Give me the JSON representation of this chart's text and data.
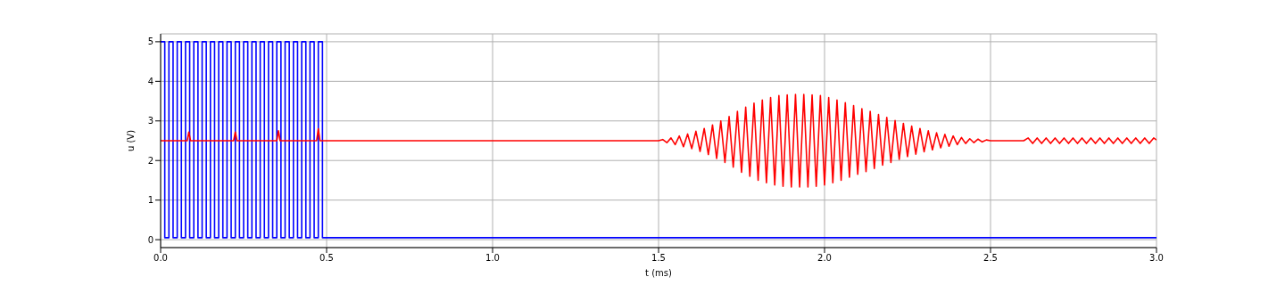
{
  "chart_data": {
    "type": "line",
    "xlabel": "t (ms)",
    "ylabel": "u (V)",
    "xlim": [
      0,
      3
    ],
    "ylim": [
      -0.2,
      5.2
    ],
    "xticks": [
      {
        "value": 0,
        "label": "0.0"
      },
      {
        "value": 0.5,
        "label": "0.5"
      },
      {
        "value": 1,
        "label": "1.0"
      },
      {
        "value": 1.5,
        "label": "1.5"
      },
      {
        "value": 2,
        "label": "2.0"
      },
      {
        "value": 2.5,
        "label": "2.5"
      },
      {
        "value": 3,
        "label": "3.0"
      }
    ],
    "yticks": [
      0,
      1,
      2,
      3,
      4,
      5
    ],
    "grid": true,
    "legend": false,
    "marker": "none",
    "line_style": "solid",
    "series": [
      {
        "color": "#0000ff",
        "x": [
          0,
          0.0125,
          0.0125,
          0.025,
          0.025,
          0.0375,
          0.0375,
          0.05,
          0.05,
          0.0625,
          0.0625,
          0.075,
          0.075,
          0.0875,
          0.0875,
          0.1,
          0.1,
          0.1125,
          0.1125,
          0.125,
          0.125,
          0.1375,
          0.1375,
          0.15,
          0.15,
          0.1625,
          0.1625,
          0.175,
          0.175,
          0.1875,
          0.1875,
          0.2,
          0.2,
          0.2125,
          0.2125,
          0.225,
          0.225,
          0.2375,
          0.2375,
          0.25,
          0.25,
          0.2625,
          0.2625,
          0.275,
          0.275,
          0.2875,
          0.2875,
          0.3,
          0.3,
          0.3125,
          0.3125,
          0.325,
          0.325,
          0.3375,
          0.3375,
          0.35,
          0.35,
          0.3625,
          0.3625,
          0.375,
          0.375,
          0.3875,
          0.3875,
          0.4,
          0.4,
          0.4125,
          0.4125,
          0.425,
          0.425,
          0.4375,
          0.4375,
          0.45,
          0.45,
          0.4625,
          0.4625,
          0.475,
          0.475,
          0.4875,
          0.4875,
          0.5,
          3
        ],
        "values": [
          5,
          5,
          0.05,
          0.05,
          5,
          5,
          0.05,
          0.05,
          5,
          5,
          0.05,
          0.05,
          5,
          5,
          0.05,
          0.05,
          5,
          5,
          0.05,
          0.05,
          5,
          5,
          0.05,
          0.05,
          5,
          5,
          0.05,
          0.05,
          5,
          5,
          0.05,
          0.05,
          5,
          5,
          0.05,
          0.05,
          5,
          5,
          0.05,
          0.05,
          5,
          5,
          0.05,
          0.05,
          5,
          5,
          0.05,
          0.05,
          5,
          5,
          0.05,
          0.05,
          5,
          5,
          0.05,
          0.05,
          5,
          5,
          0.05,
          0.05,
          5,
          5,
          0.05,
          0.05,
          5,
          5,
          0.05,
          0.05,
          5,
          5,
          0.05,
          0.05,
          5,
          5,
          0.05,
          0.05,
          5,
          5,
          0.05,
          0.05,
          0.05
        ]
      },
      {
        "color": "#ff0000",
        "x": [
          0,
          0.08,
          0.085,
          0.09,
          0.22,
          0.225,
          0.23,
          0.35,
          0.355,
          0.36,
          0.47,
          0.475,
          0.48,
          1.5,
          1.5125,
          1.525,
          1.5375,
          1.55,
          1.5625,
          1.575,
          1.5875,
          1.6,
          1.6125,
          1.625,
          1.6375,
          1.65,
          1.6625,
          1.675,
          1.6875,
          1.7,
          1.7125,
          1.725,
          1.7375,
          1.75,
          1.7625,
          1.775,
          1.7875,
          1.8,
          1.8125,
          1.825,
          1.8375,
          1.85,
          1.8625,
          1.875,
          1.8875,
          1.9,
          1.9125,
          1.925,
          1.9375,
          1.95,
          1.9625,
          1.975,
          1.9875,
          2,
          2.0125,
          2.025,
          2.0375,
          2.05,
          2.0625,
          2.075,
          2.0875,
          2.1,
          2.1125,
          2.125,
          2.1375,
          2.15,
          2.1625,
          2.175,
          2.1875,
          2.2,
          2.2125,
          2.225,
          2.2375,
          2.25,
          2.2625,
          2.275,
          2.2875,
          2.3,
          2.3125,
          2.325,
          2.3375,
          2.35,
          2.3625,
          2.375,
          2.3875,
          2.4,
          2.4125,
          2.425,
          2.4375,
          2.45,
          2.4625,
          2.475,
          2.4875,
          2.5,
          2.6,
          2.6135,
          2.627,
          2.6405,
          2.654,
          2.6675,
          2.681,
          2.6945,
          2.708,
          2.7215,
          2.735,
          2.7485,
          2.762,
          2.7755,
          2.789,
          2.8025,
          2.816,
          2.8295,
          2.843,
          2.8565,
          2.87,
          2.8835,
          2.897,
          2.9105,
          2.924,
          2.9375,
          2.951,
          2.9645,
          2.978,
          2.9915,
          3
        ],
        "values": [
          2.5,
          2.5,
          2.72,
          2.5,
          2.5,
          2.72,
          2.5,
          2.5,
          2.75,
          2.5,
          2.5,
          2.8,
          2.5,
          2.5,
          2.53,
          2.45,
          2.57,
          2.4,
          2.62,
          2.35,
          2.67,
          2.3,
          2.74,
          2.23,
          2.81,
          2.15,
          2.9,
          2.05,
          3,
          1.95,
          3.11,
          1.83,
          3.24,
          1.7,
          3.35,
          1.6,
          3.45,
          1.5,
          3.53,
          1.44,
          3.59,
          1.38,
          3.64,
          1.35,
          3.66,
          1.33,
          3.67,
          1.33,
          3.67,
          1.33,
          3.66,
          1.35,
          3.64,
          1.38,
          3.59,
          1.44,
          3.53,
          1.5,
          3.46,
          1.58,
          3.39,
          1.65,
          3.31,
          1.72,
          3.24,
          1.8,
          3.16,
          1.88,
          3.09,
          1.95,
          3.01,
          2.03,
          2.94,
          2.1,
          2.87,
          2.16,
          2.81,
          2.22,
          2.75,
          2.27,
          2.7,
          2.32,
          2.66,
          2.36,
          2.62,
          2.4,
          2.58,
          2.43,
          2.55,
          2.45,
          2.54,
          2.47,
          2.52,
          2.5,
          2.5,
          2.57,
          2.43,
          2.57,
          2.43,
          2.57,
          2.43,
          2.57,
          2.43,
          2.57,
          2.43,
          2.57,
          2.43,
          2.57,
          2.43,
          2.57,
          2.43,
          2.57,
          2.43,
          2.57,
          2.43,
          2.57,
          2.43,
          2.57,
          2.43,
          2.57,
          2.43,
          2.57,
          2.43,
          2.57,
          2.52
        ]
      }
    ]
  }
}
